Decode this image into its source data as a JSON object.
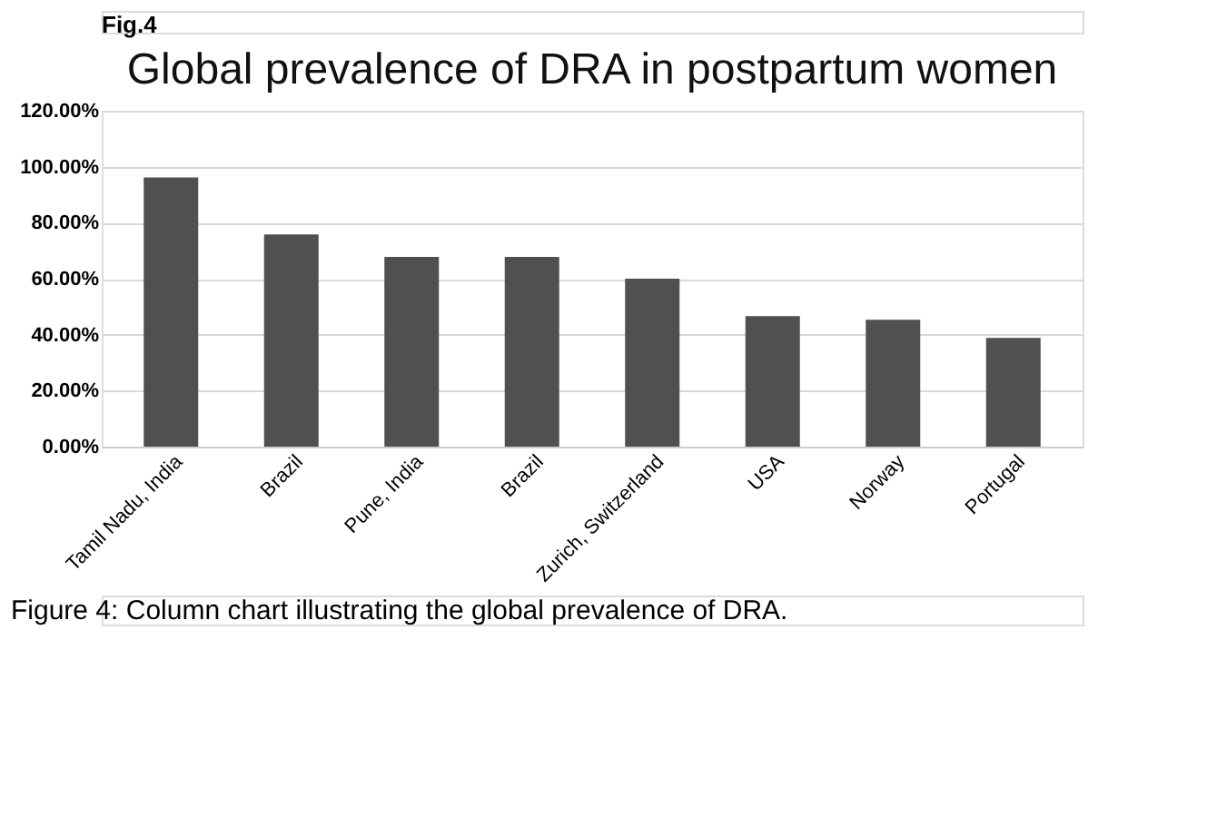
{
  "chart_data": {
    "type": "bar",
    "title": "Global prevalence of DRA in postpartum women",
    "categories": [
      "Tamil Nadu, India",
      "Brazil",
      "Pune, India",
      "Brazil",
      "Zurich, Switzerland",
      "USA",
      "Norway",
      "Portugal"
    ],
    "values": [
      96.2,
      75.8,
      67.8,
      67.8,
      60.0,
      46.6,
      45.3,
      38.8
    ],
    "color": "#505050",
    "ylim": [
      0,
      120
    ],
    "yticks": [
      {
        "value": 0,
        "label": "0.00%"
      },
      {
        "value": 20,
        "label": "20.00%"
      },
      {
        "value": 40,
        "label": "40.00%"
      },
      {
        "value": 60,
        "label": "60.00%"
      },
      {
        "value": 80,
        "label": "80.00%"
      },
      {
        "value": 100,
        "label": "100.00%"
      },
      {
        "value": 120,
        "label": "120.00%"
      }
    ],
    "grid": "y",
    "annotations": [
      "Fig.4",
      "Figure 4: Column chart illustrating the global prevalence of DRA."
    ]
  }
}
